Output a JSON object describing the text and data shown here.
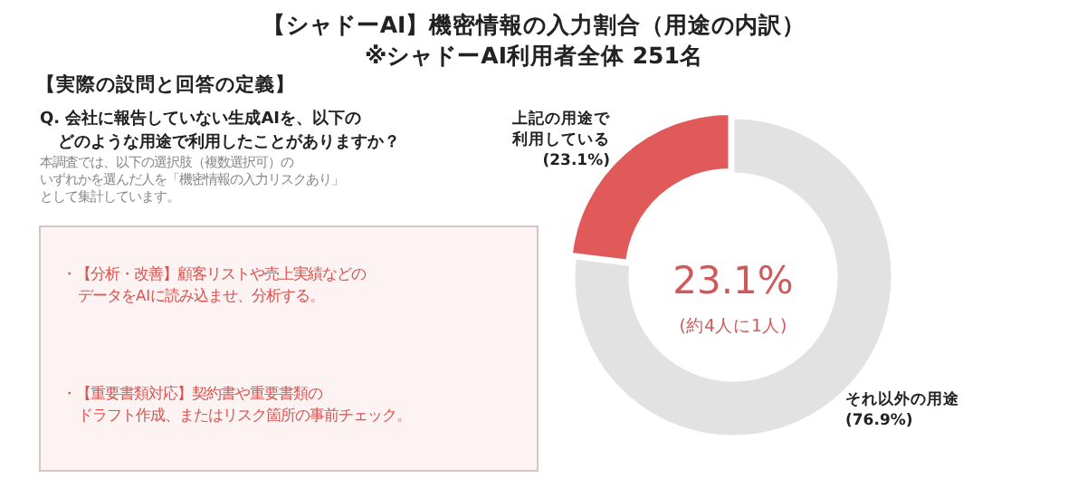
{
  "chart_data": {
    "type": "donut",
    "title": "【シャドーAI】機密情報の入力割合（用途の内訳）",
    "subtitle": "※シャドーAI利用者全体 251名",
    "categories": [
      "上記の用途で利用している",
      "それ以外の用途"
    ],
    "values": [
      23.1,
      76.9
    ],
    "colors": [
      "#e05a5a",
      "#e2e2e2"
    ],
    "value_labels": [
      "(23.1%)",
      "(76.9%)"
    ],
    "annotations": [
      "【実際の設問と回答の定義】",
      "Q. 会社に報告していない生成AIを、以下のどのような用途で利用したことがありますか？",
      "本調査では、以下の選択肢（複数選択可）のいずれかを選んだ人を「機密情報の入力リスクあり」として集計しています。",
      "・【分析・改善】顧客リストや売上実績などのデータをAIに読み込ませ、分析する。",
      "・【重要書類対応】契約書や重要書類のドラフト作成、またはリスク箇所の事前チェック。",
      "23.1%",
      "(約4人に1人)"
    ]
  }
}
